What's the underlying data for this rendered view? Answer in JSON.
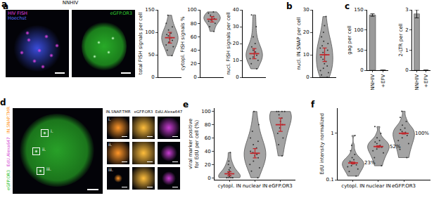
{
  "chart_data": [
    {
      "type": "violin",
      "annotations": [
        {
          "text": "a"
        }
      ],
      "ylabel": "total FISH signals per cell",
      "tick_labels": "y",
      "values": [
        [
          48,
          60,
          68,
          72,
          78,
          82,
          85,
          88,
          92,
          95,
          98,
          105,
          112,
          120,
          138
        ]
      ],
      "means": [
        88
      ],
      "errors": [
        12
      ],
      "ylim": [
        0,
        150
      ],
      "yticks": [
        0,
        50,
        100,
        150
      ]
    },
    {
      "type": "violin",
      "ylabel": "cytopl. FISH signals %",
      "tick_labels": "y",
      "values": [
        [
          68,
          75,
          80,
          83,
          85,
          87,
          88,
          90,
          92,
          95,
          97
        ]
      ],
      "means": [
        86
      ],
      "errors": [
        4
      ],
      "ylim": [
        0,
        100
      ],
      "yticks": [
        0,
        20,
        40,
        60,
        80,
        100
      ]
    },
    {
      "type": "violin",
      "ylabel": "nucl. FISH signals per cell",
      "tick_labels": "y",
      "values": [
        [
          5,
          8,
          10,
          11,
          12,
          13,
          14,
          15,
          16,
          18,
          20,
          24,
          30,
          37
        ]
      ],
      "means": [
        14
      ],
      "errors": [
        3
      ],
      "ylim": [
        0,
        40
      ],
      "yticks": [
        0,
        10,
        20,
        30,
        40
      ]
    },
    {
      "type": "violin",
      "annotations": [
        {
          "text": "b"
        }
      ],
      "ylabel": "nucl. IN.SNAP per cell",
      "tick_labels": "y",
      "values": [
        [
          0,
          1,
          2,
          3,
          4,
          5,
          6,
          7,
          8,
          9,
          10,
          11,
          12,
          13,
          14,
          15,
          16,
          18,
          20,
          23,
          27
        ]
      ],
      "means": [
        10
      ],
      "errors": [
        3
      ],
      "ylim": [
        0,
        30
      ],
      "yticks": [
        0,
        10,
        20,
        30
      ]
    },
    {
      "type": "bar",
      "annotations": [
        {
          "text": "c"
        }
      ],
      "ylabel": "gag per cell",
      "categories": [
        "NNHIV",
        "+EFV"
      ],
      "values": [
        137,
        0
      ],
      "errors": [
        3,
        0
      ],
      "color": "#9a9a9a",
      "ylim": [
        0,
        150
      ],
      "yticks": [
        0,
        50,
        100,
        150
      ]
    },
    {
      "type": "bar",
      "ylabel": "2-LTR per cell",
      "categories": [
        "NNHIV",
        "+EFV"
      ],
      "values": [
        2.8,
        0
      ],
      "errors": [
        0.2,
        0
      ],
      "color": "#9a9a9a",
      "ylim": [
        0,
        3
      ],
      "yticks": [
        0,
        1,
        2,
        3
      ]
    },
    {
      "type": "violin",
      "annotations": [
        {
          "text": "e"
        }
      ],
      "ylabel": "viral marker positive for EdU per cell (%)",
      "categories": [
        "cytopl. IN",
        "nuclear IN",
        "eGFP.OR3"
      ],
      "values": [
        [
          0,
          0,
          0,
          0,
          0,
          0,
          2,
          3,
          5,
          8,
          10,
          12,
          15,
          20,
          25,
          38
        ],
        [
          0,
          10,
          15,
          20,
          25,
          30,
          33,
          35,
          38,
          40,
          45,
          50,
          55,
          60,
          70,
          80,
          100
        ],
        [
          33,
          50,
          60,
          67,
          75,
          80,
          85,
          90,
          95,
          100,
          100,
          100,
          100
        ]
      ],
      "means": [
        6,
        37,
        80
      ],
      "errors": [
        3,
        7,
        10
      ],
      "ylim": [
        -3,
        105
      ],
      "yticks": [
        0,
        20,
        40,
        60,
        80,
        100
      ]
    },
    {
      "type": "violin",
      "annotations": [
        {
          "text": "f"
        }
      ],
      "ylabel": "EdU intensity normalized",
      "log": "y",
      "categories": [
        "cytopl. IN",
        "nuclear IN",
        "eGFP.OR3"
      ],
      "values": [
        [
          0.12,
          0.15,
          0.17,
          0.19,
          0.2,
          0.21,
          0.22,
          0.23,
          0.24,
          0.25,
          0.27,
          0.3,
          0.35,
          0.42,
          0.55,
          0.9
        ],
        [
          0.2,
          0.3,
          0.38,
          0.42,
          0.46,
          0.5,
          0.52,
          0.55,
          0.6,
          0.65,
          0.7,
          0.8,
          1.0,
          1.4
        ],
        [
          0.3,
          0.45,
          0.6,
          0.7,
          0.8,
          0.9,
          1.0,
          1.05,
          1.1,
          1.2,
          1.3,
          1.5,
          1.8,
          2.2,
          3.0
        ]
      ],
      "means": [
        0.23,
        0.52,
        1.0
      ],
      "errors": [
        0.01,
        0.02,
        0.03
      ],
      "data_labels": true,
      "value_labels": [
        "23%",
        "52%",
        "100%"
      ],
      "ylim": [
        0.1,
        3.5
      ],
      "yticks": [
        0.1,
        1
      ]
    }
  ],
  "images": [
    {
      "annotation": "a",
      "title": "NNHIV",
      "frames": [
        {
          "labels": [
            {
              "text": "HIV FISH",
              "color": "#e040e0"
            },
            {
              "text": "Hoechst",
              "color": "#5a70ff"
            }
          ]
        },
        {
          "labels": [
            {
              "text": "eGFP.OR3",
              "color": "#30d030"
            }
          ]
        }
      ]
    },
    {
      "annotation": "d",
      "labels": [
        {
          "text": "eGFP.OR3",
          "color": "#30c030"
        },
        {
          "text": "EdU.Alexa647",
          "color": "#d040d0"
        },
        {
          "text": "IN.SNAP.TMR",
          "color": "#ff9a30"
        }
      ],
      "regions": [
        "i.",
        "ii.",
        "iii."
      ],
      "crop_columns": [
        "IN.SNAP.TMR",
        "eGFP.OR3",
        "EdU.Alexa647"
      ]
    }
  ]
}
